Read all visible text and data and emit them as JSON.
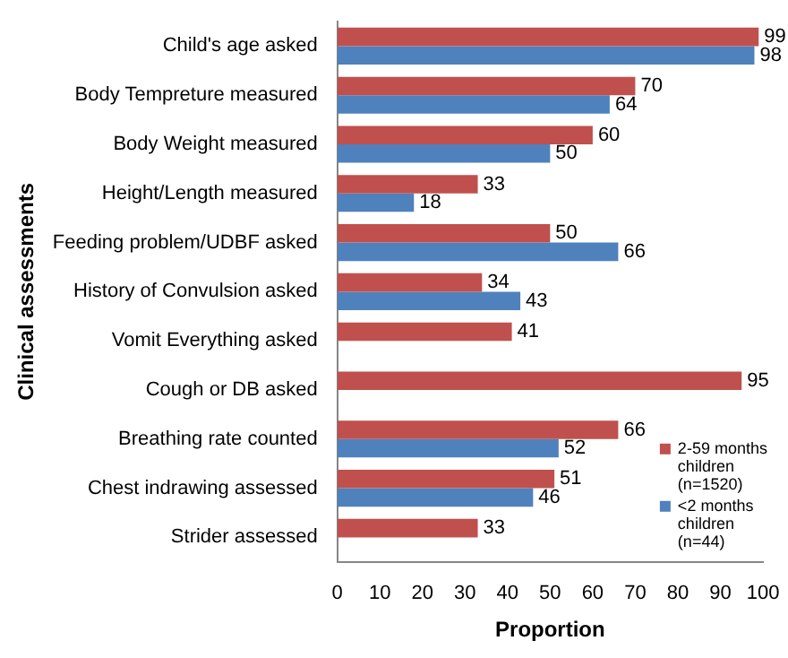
{
  "chart_data": {
    "type": "bar",
    "orientation": "horizontal",
    "xlabel": "Proportion",
    "ylabel": "Clinical assessments",
    "categories": [
      "Child's age asked",
      "Body Tempreture measured",
      "Body Weight measured",
      "Height/Length measured",
      "Feeding problem/UDBF asked",
      "History of Convulsion asked",
      "Vomit Everything asked",
      "Cough or DB asked",
      "Breathing rate counted",
      "Chest indrawing assessed",
      "Strider assessed"
    ],
    "series": [
      {
        "name": "2-59 months children (n=1520)",
        "color": "#c0504d",
        "values": [
          99,
          70,
          60,
          33,
          50,
          34,
          41,
          95,
          66,
          51,
          33
        ]
      },
      {
        "name": "<2 months children (n=44)",
        "color": "#4f81bd",
        "values": [
          98,
          64,
          50,
          18,
          66,
          43,
          null,
          null,
          52,
          46,
          null
        ]
      }
    ],
    "xlim": [
      0,
      100
    ],
    "xticks": [
      0,
      10,
      20,
      30,
      40,
      50,
      60,
      70,
      80,
      90,
      100
    ],
    "grid": false,
    "legend": "bottom right",
    "data_labels": true
  }
}
